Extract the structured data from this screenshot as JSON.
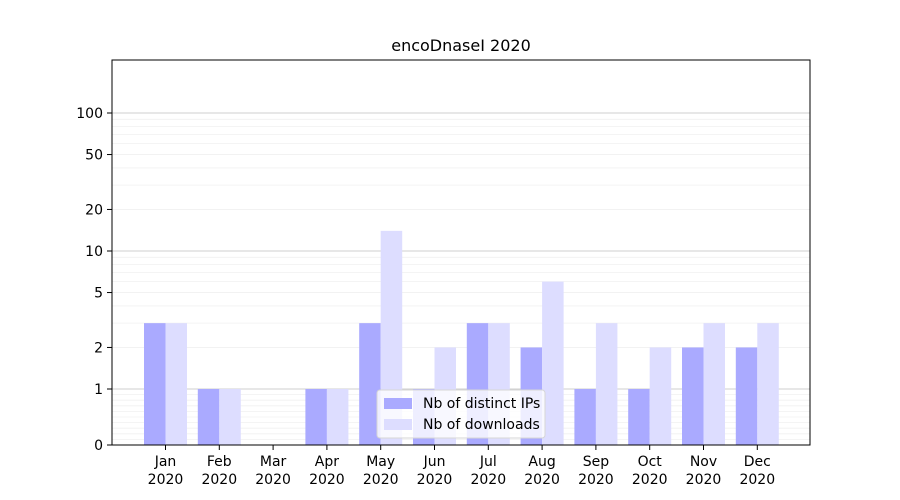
{
  "chart_data": {
    "type": "bar",
    "title": "encoDnaseI 2020",
    "xlabel": "",
    "ylabel": "",
    "y_scale": "symlog",
    "ylim": [
      0,
      120
    ],
    "yticks": [
      0,
      1,
      2,
      5,
      10,
      20,
      50,
      100
    ],
    "categories": [
      "Jan\n2020",
      "Feb\n2020",
      "Mar\n2020",
      "Apr\n2020",
      "May\n2020",
      "Jun\n2020",
      "Jul\n2020",
      "Aug\n2020",
      "Sep\n2020",
      "Oct\n2020",
      "Nov\n2020",
      "Dec\n2020"
    ],
    "series": [
      {
        "name": "Nb of distinct IPs",
        "color": "#aaaaff",
        "values": [
          3,
          1,
          0,
          1,
          3,
          1,
          3,
          2,
          1,
          1,
          2,
          2
        ]
      },
      {
        "name": "Nb of downloads",
        "color": "#ddddff",
        "values": [
          3,
          1,
          0,
          1,
          14,
          2,
          3,
          6,
          3,
          2,
          3,
          3
        ]
      }
    ],
    "grid": true,
    "legend_position": "bottom-center"
  }
}
